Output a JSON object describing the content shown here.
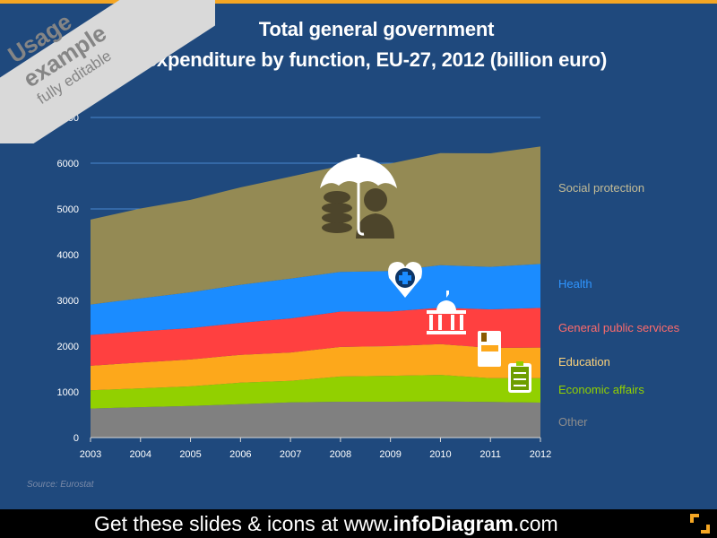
{
  "title_line1": "Total general government",
  "title_line2": "expenditure by function, EU-27, 2012 (billion euro)",
  "banner": {
    "line1": "Usage",
    "line2": "example",
    "line3": "fully editable"
  },
  "source": "Source:  Eurostat",
  "footer": {
    "prefix": "Get these slides & icons at www.",
    "brand": "infoDiagram",
    "suffix": ".com"
  },
  "chart_data": {
    "type": "area",
    "stacked": true,
    "title": "Total general government expenditure by function, EU-27, 2012 (billion euro)",
    "x": [
      "2003",
      "2004",
      "2005",
      "2006",
      "2007",
      "2008",
      "2009",
      "2010",
      "2011",
      "2012"
    ],
    "ylim": [
      0,
      7000
    ],
    "yticks": [
      0,
      1000,
      2000,
      3000,
      4000,
      5000,
      6000,
      7000
    ],
    "grid": true,
    "legend_placement": "right",
    "series": [
      {
        "name": "Other",
        "color": "#808080",
        "label_color": "#8c8c8c",
        "values": [
          635,
          665,
          690,
          730,
          770,
          785,
          785,
          790,
          780,
          765
        ]
      },
      {
        "name": "Economic affairs",
        "color": "#92d000",
        "label_color": "#92d000",
        "values": [
          400,
          410,
          430,
          470,
          470,
          550,
          565,
          580,
          520,
          535
        ]
      },
      {
        "name": "Education",
        "color": "#fda81b",
        "label_color": "#fdd27a",
        "values": [
          536,
          568,
          588,
          610,
          621,
          647,
          650,
          673,
          661,
          667
        ]
      },
      {
        "name": "General public services",
        "color": "#ff4040",
        "label_color": "#ff6b6b",
        "values": [
          673,
          680,
          687,
          700,
          744,
          772,
          758,
          798,
          843,
          870
        ]
      },
      {
        "name": "Health",
        "color": "#1b8cff",
        "label_color": "#2f95ff",
        "values": [
          666,
          720,
          781,
          830,
          870,
          869,
          883,
          928,
          928,
          960
        ]
      },
      {
        "name": "Social protection",
        "color": "#948a54",
        "label_color": "#c4bc96",
        "values": [
          1857,
          1967,
          2023,
          2131,
          2230,
          2320,
          2352,
          2451,
          2484,
          2569
        ]
      }
    ]
  },
  "icons": [
    "umbrella-money-person-icon",
    "heart-medical-icon",
    "government-building-icon",
    "book-icon",
    "clipboard-checklist-icon"
  ],
  "colors": {
    "background": "#1f497d",
    "accent": "#f5a623"
  }
}
